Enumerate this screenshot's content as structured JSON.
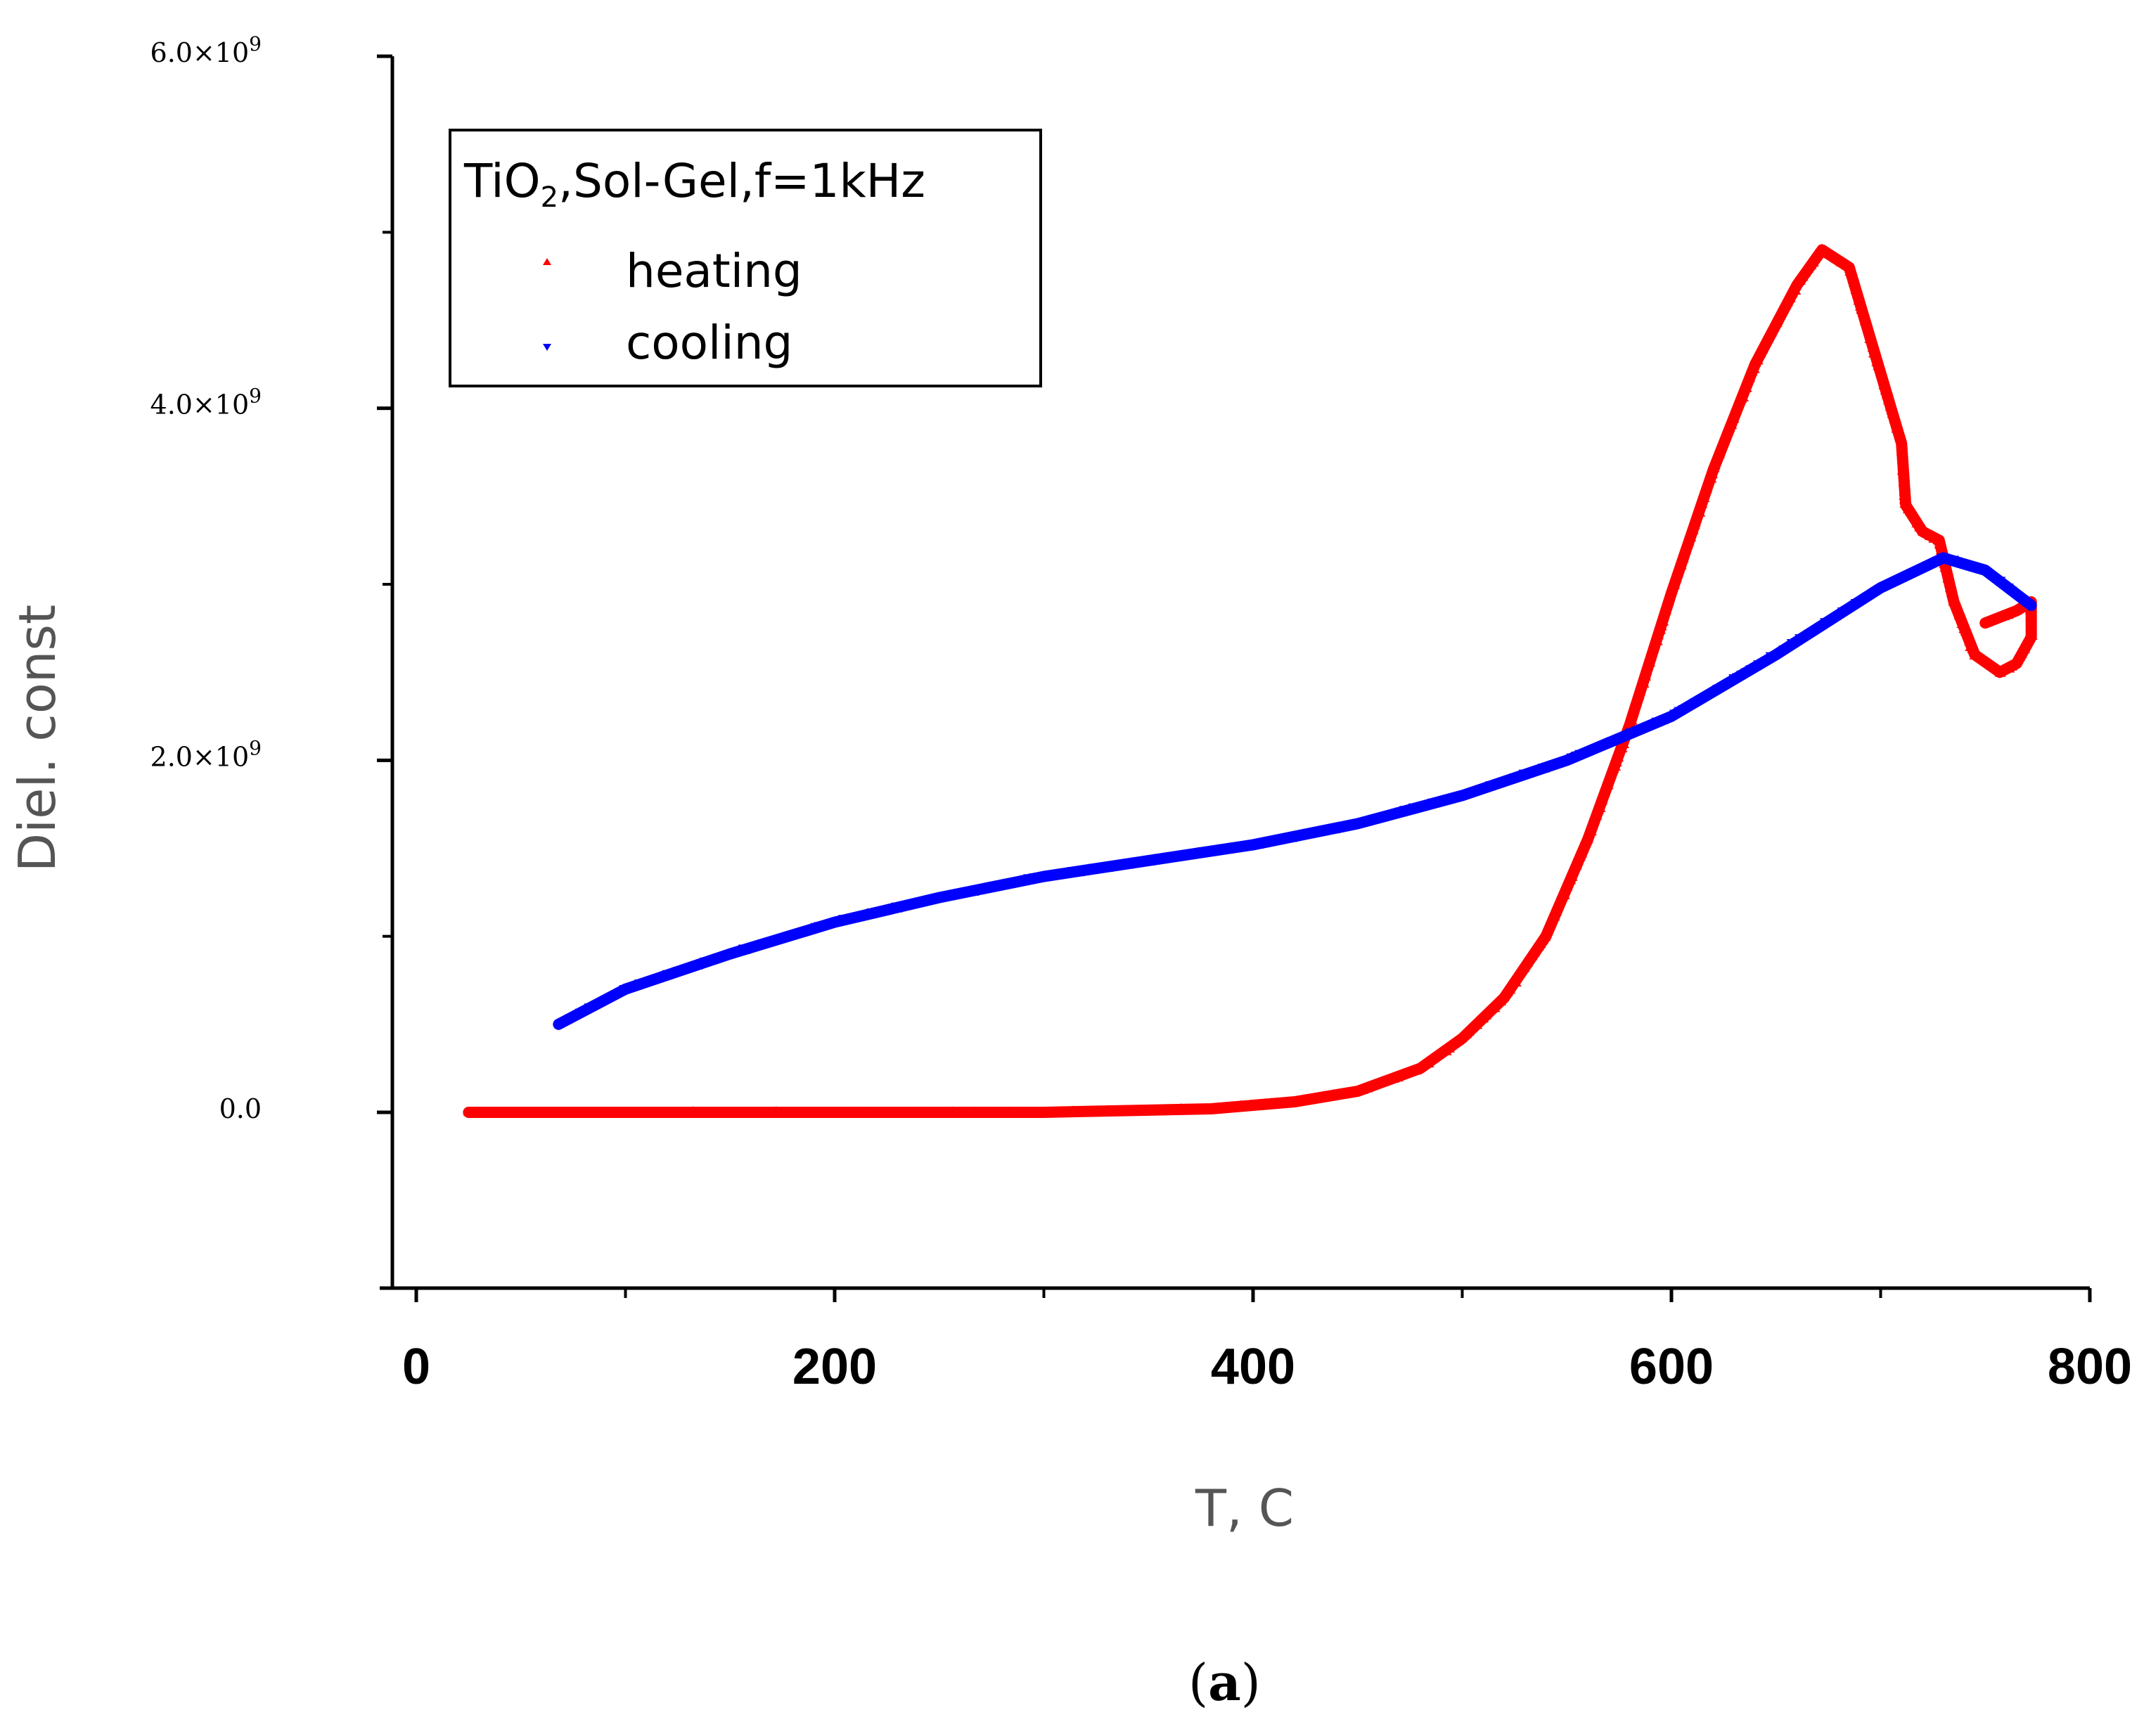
{
  "chart_data": {
    "type": "scatter",
    "xlabel": "T, C",
    "ylabel": "Diel. const",
    "xlim": [
      0,
      800
    ],
    "ylim": [
      -1000000000,
      6000000000
    ],
    "x_ticks": [
      0,
      200,
      400,
      600,
      800
    ],
    "x_tick_labels": [
      "0",
      "200",
      "400",
      "600",
      "800"
    ],
    "y_ticks": [
      0,
      2000000000,
      4000000000,
      6000000000
    ],
    "y_tick_labels": [
      {
        "mantissa": "0.0",
        "exp": ""
      },
      {
        "mantissa": "2.0",
        "exp": "9"
      },
      {
        "mantissa": "4.0",
        "exp": "9"
      },
      {
        "mantissa": "6.0",
        "exp": "9"
      }
    ],
    "grid": false,
    "legend": {
      "title_main": "TiO",
      "title_sub": "2",
      "title_rest": ",Sol-Gel,f=1kHz",
      "placement": "top-left"
    },
    "caption": {
      "open": "(",
      "letter": "a",
      "close": ")"
    },
    "series": [
      {
        "name": "heating",
        "color": "#ff0000",
        "marker": "triangle-up",
        "x": [
          25,
          100,
          200,
          300,
          380,
          420,
          450,
          480,
          500,
          520,
          540,
          560,
          580,
          600,
          620,
          640,
          660,
          672,
          685,
          700,
          710,
          712,
          720,
          728,
          735,
          745,
          757,
          765,
          772,
          772,
          765,
          750
        ],
        "y": [
          0,
          0,
          0,
          0,
          20000000,
          60000000,
          120000000,
          250000000,
          420000000,
          650000000,
          1000000000,
          1550000000,
          2200000000,
          2950000000,
          3650000000,
          4250000000,
          4700000000,
          4900000000,
          4800000000,
          4200000000,
          3800000000,
          3450000000,
          3300000000,
          3250000000,
          2900000000,
          2600000000,
          2500000000,
          2550000000,
          2700000000,
          2900000000,
          2850000000,
          2780000000
        ]
      },
      {
        "name": "cooling",
        "color": "#0000ff",
        "marker": "triangle-down",
        "x": [
          68,
          100,
          150,
          200,
          250,
          300,
          350,
          400,
          450,
          500,
          550,
          600,
          650,
          700,
          730,
          750,
          772
        ],
        "y": [
          500000000,
          700000000,
          900000000,
          1080000000,
          1220000000,
          1340000000,
          1430000000,
          1520000000,
          1640000000,
          1800000000,
          2000000000,
          2250000000,
          2600000000,
          2980000000,
          3150000000,
          3080000000,
          2880000000
        ]
      }
    ]
  }
}
